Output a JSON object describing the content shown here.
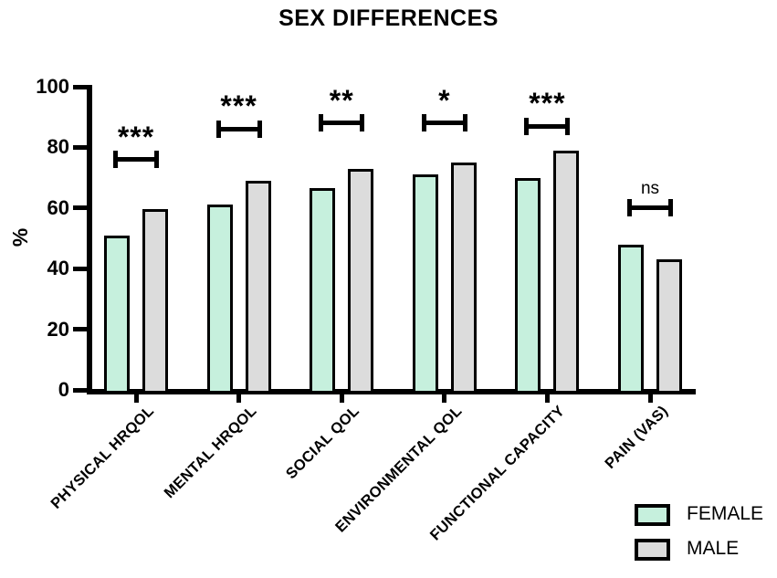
{
  "chart_data": {
    "type": "bar",
    "title": "SEX DIFFERENCES",
    "ylabel": "%",
    "xlabel": "",
    "ylim": [
      0,
      100
    ],
    "yticks": [
      0,
      20,
      40,
      60,
      80,
      100
    ],
    "grid": false,
    "legend_position": "bottom-right",
    "categories": [
      "PHYSICAL HRQOL",
      "MENTAL HRQOL",
      "SOCIAL QOL",
      "ENVIRONMENTAL QOL",
      "FUNCTIONAL CAPACITY",
      "PAIN (VAS)"
    ],
    "series": [
      {
        "name": "FEMALE",
        "color": "#c6f0dd",
        "values": [
          51,
          61,
          66.5,
          71,
          70,
          48
        ]
      },
      {
        "name": "MALE",
        "color": "#dcdcdc",
        "values": [
          59.5,
          69,
          73,
          75,
          79,
          43
        ]
      }
    ],
    "significance": [
      {
        "category": "PHYSICAL HRQOL",
        "label": "***",
        "bracket_y": 76
      },
      {
        "category": "MENTAL HRQOL",
        "label": "***",
        "bracket_y": 86
      },
      {
        "category": "SOCIAL QOL",
        "label": "**",
        "bracket_y": 88
      },
      {
        "category": "ENVIRONMENTAL QOL",
        "label": "*",
        "bracket_y": 88
      },
      {
        "category": "FUNCTIONAL CAPACITY",
        "label": "***",
        "bracket_y": 87
      },
      {
        "category": "PAIN (VAS)",
        "label": "ns",
        "bracket_y": 60
      }
    ],
    "colors": {
      "female_fill": "#c6f0dd",
      "male_fill": "#dcdcdc",
      "bar_border": "#000000",
      "axis": "#000000",
      "background": "#ffffff",
      "text": "#000000"
    }
  }
}
